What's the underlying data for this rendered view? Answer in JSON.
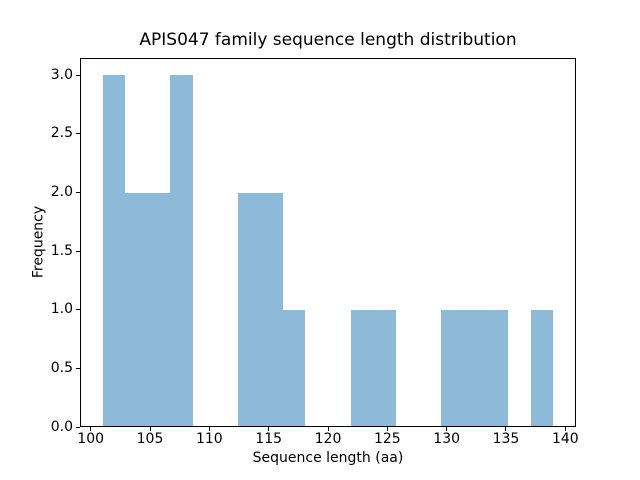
{
  "chart_data": {
    "type": "bar",
    "subtype": "histogram",
    "title": "APIS047 family sequence length distribution",
    "xlabel": "Sequence length (aa)",
    "ylabel": "Frequency",
    "bin_edges": [
      101.0,
      102.9,
      104.8,
      106.7,
      108.6,
      110.5,
      112.4,
      114.3,
      116.2,
      118.1,
      120.0,
      121.9,
      123.8,
      125.7,
      127.6,
      129.5,
      131.4,
      133.3,
      135.2,
      137.1,
      139.0
    ],
    "counts": [
      3,
      2,
      2,
      3,
      0,
      0,
      2,
      2,
      1,
      0,
      0,
      1,
      1,
      0,
      0,
      1,
      1,
      1,
      0,
      1
    ],
    "xlim": [
      99.1,
      140.9
    ],
    "ylim": [
      0,
      3.15
    ],
    "xticks": [
      100,
      105,
      110,
      115,
      120,
      125,
      130,
      135,
      140
    ],
    "xtick_labels": [
      "100",
      "105",
      "110",
      "115",
      "120",
      "125",
      "130",
      "135",
      "140"
    ],
    "yticks": [
      0,
      0.5,
      1,
      1.5,
      2,
      2.5,
      3
    ],
    "ytick_labels": [
      "0.0",
      "0.5",
      "1.0",
      "1.5",
      "2.0",
      "2.5",
      "3.0"
    ],
    "bar_color": "#8dbad9",
    "axis_color": "#000000",
    "background_color": "#ffffff",
    "grid": false,
    "legend": null
  }
}
